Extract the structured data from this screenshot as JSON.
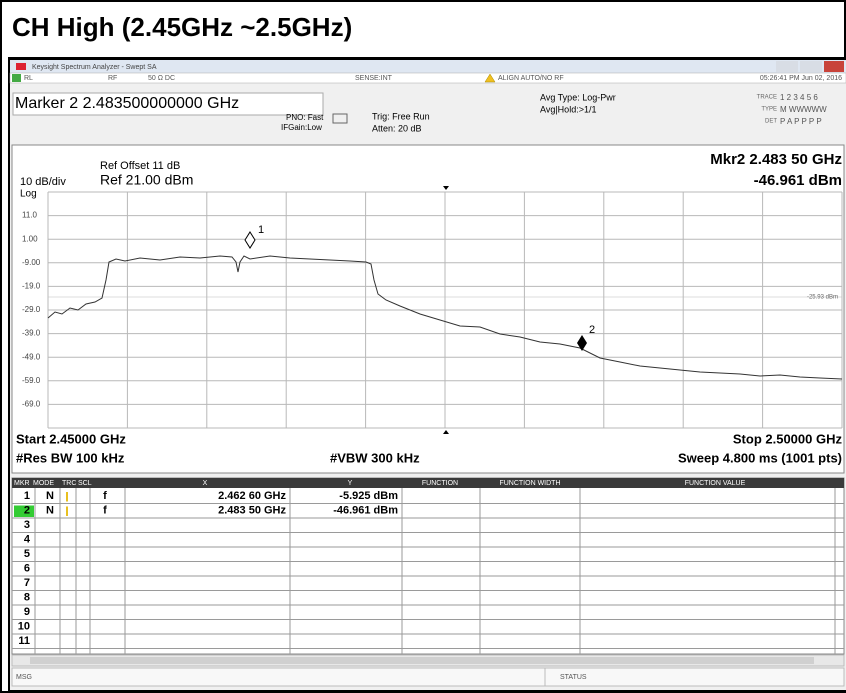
{
  "heading": "CH High (2.45GHz ~2.5GHz)",
  "window_title": "Keysight Spectrum Analyzer - Swept SA",
  "status_bar": {
    "rl": "RL",
    "rf": "RF",
    "input": "50 Ω  DC",
    "sense": "SENSE:INT",
    "align": "ALIGN AUTO/NO RF",
    "timestamp": "05:26:41 PM Jun 02, 2016"
  },
  "marker_readout": "Marker 2 2.483500000000 GHz",
  "settings": {
    "pno": "PNO: Fast",
    "ifgain": "IFGain:Low",
    "trig": "Trig: Free Run",
    "atten": "Atten: 20 dB",
    "avg_type": "Avg Type: Log-Pwr",
    "avg_hold": "Avg|Hold:>1/1"
  },
  "trace_info": {
    "trace_label": "TRACE",
    "trace_nums": "1 2 3 4 5 6",
    "type_label": "TYPE",
    "type_vals": "M WWWWW",
    "det_label": "DET",
    "det_vals": "P A P P P P"
  },
  "display": {
    "ref_offset": "Ref Offset 11 dB",
    "scale": "10 dB/div",
    "ref_level": "Ref 21.00 dBm",
    "scale_type": "Log",
    "mkr_freq": "Mkr2 2.483 50 GHz",
    "mkr_level": "-46.961 dBm",
    "y_labels": [
      "11.0",
      "1.00",
      "-9.00",
      "-19.0",
      "-29.0",
      "-39.0",
      "-49.0",
      "-59.0",
      "-69.0"
    ],
    "display_line": "-25.93 dBm",
    "marker1": "1",
    "marker2": "2",
    "start": "Start 2.45000 GHz",
    "stop": "Stop 2.50000 GHz",
    "rbw": "#Res BW 100 kHz",
    "vbw": "#VBW 300 kHz",
    "sweep": "Sweep 4.800 ms (1001 pts)"
  },
  "marker_table": {
    "headers": {
      "mkr": "MKR",
      "mode": "MODE",
      "trc": "TRC",
      "scl": "SCL",
      "x": "X",
      "y": "Y",
      "function": "FUNCTION",
      "function_width": "FUNCTION WIDTH",
      "function_value": "FUNCTION VALUE"
    },
    "rows": [
      {
        "mkr": "1",
        "mode": "N",
        "scl": "f",
        "x": "2.462 60 GHz",
        "y": "-5.925 dBm"
      },
      {
        "mkr": "2",
        "mode": "N",
        "scl": "f",
        "x": "2.483 50 GHz",
        "y": "-46.961 dBm"
      },
      {
        "mkr": "3"
      },
      {
        "mkr": "4"
      },
      {
        "mkr": "5"
      },
      {
        "mkr": "6"
      },
      {
        "mkr": "7"
      },
      {
        "mkr": "8"
      },
      {
        "mkr": "9"
      },
      {
        "mkr": "10"
      },
      {
        "mkr": "11"
      }
    ]
  },
  "footer": {
    "msg": "MSG",
    "status": "STATUS"
  }
}
